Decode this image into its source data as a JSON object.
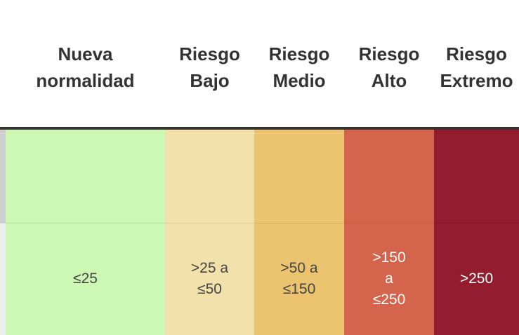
{
  "table": {
    "headers": [
      "Nueva\nnormalidad",
      "Riesgo\nBajo",
      "Riesgo\nMedio",
      "Riesgo\nAlto",
      "Riesgo\nExtremo"
    ],
    "rows": [
      [
        "≤25",
        ">25 a\n≤50",
        ">50 a\n≤150",
        ">150\na\n≤250",
        ">250"
      ]
    ]
  }
}
